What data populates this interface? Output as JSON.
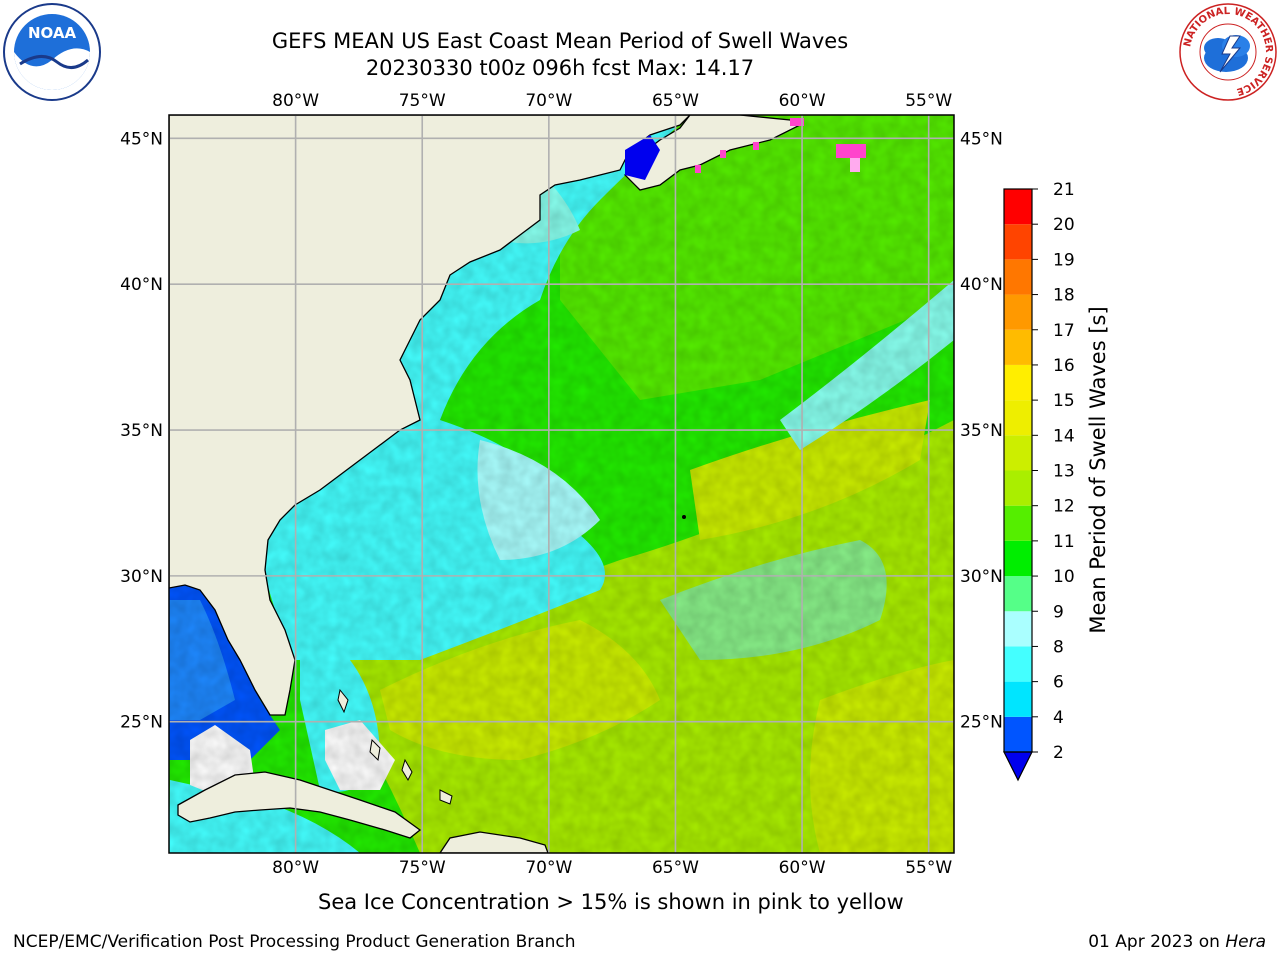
{
  "title": {
    "line1": "GEFS MEAN US East Coast Mean Period of Swell Waves",
    "line2": "20230330 t00z 096h fcst   Max: 14.17"
  },
  "map": {
    "lon_min": -85,
    "lon_max": -54,
    "lat_min": 20.5,
    "lat_max": 45.8,
    "lon_ticks": [
      {
        "value": -80,
        "label": "80°W"
      },
      {
        "value": -75,
        "label": "75°W"
      },
      {
        "value": -70,
        "label": "70°W"
      },
      {
        "value": -65,
        "label": "65°W"
      },
      {
        "value": -60,
        "label": "60°W"
      },
      {
        "value": -55,
        "label": "55°W"
      }
    ],
    "lat_ticks": [
      {
        "value": 45,
        "label": "45°N"
      },
      {
        "value": 40,
        "label": "40°N"
      },
      {
        "value": 35,
        "label": "35°N"
      },
      {
        "value": 30,
        "label": "30°N"
      },
      {
        "value": 25,
        "label": "25°N"
      }
    ],
    "land_color": "#eeeedd",
    "gridline_color": "#b0b0b0"
  },
  "colorbar": {
    "label": "Mean Period of Swell Waves [s]",
    "ticks": [
      "2",
      "4",
      "6",
      "8",
      "9",
      "10",
      "11",
      "12",
      "13",
      "14",
      "15",
      "16",
      "17",
      "18",
      "19",
      "20",
      "21"
    ],
    "colors": [
      "#0055ff",
      "#00e5ff",
      "#44ffff",
      "#aaffff",
      "#55ff88",
      "#00ee00",
      "#55ee00",
      "#aaee00",
      "#ccee00",
      "#eeee00",
      "#ffee00",
      "#ffbb00",
      "#ff9900",
      "#ff7700",
      "#ff4400",
      "#ff0000"
    ],
    "under_color": "#0000ee"
  },
  "note": "Sea Ice Concentration > 15% is shown in pink to yellow",
  "footer": {
    "left": "NCEP/EMC/Verification Post Processing Product Generation Branch",
    "date": "01 Apr 2023 on ",
    "machine": "Hera"
  },
  "logos": {
    "noaa": "NOAA",
    "nws_ring": "NATIONAL WEATHER SERVICE"
  }
}
